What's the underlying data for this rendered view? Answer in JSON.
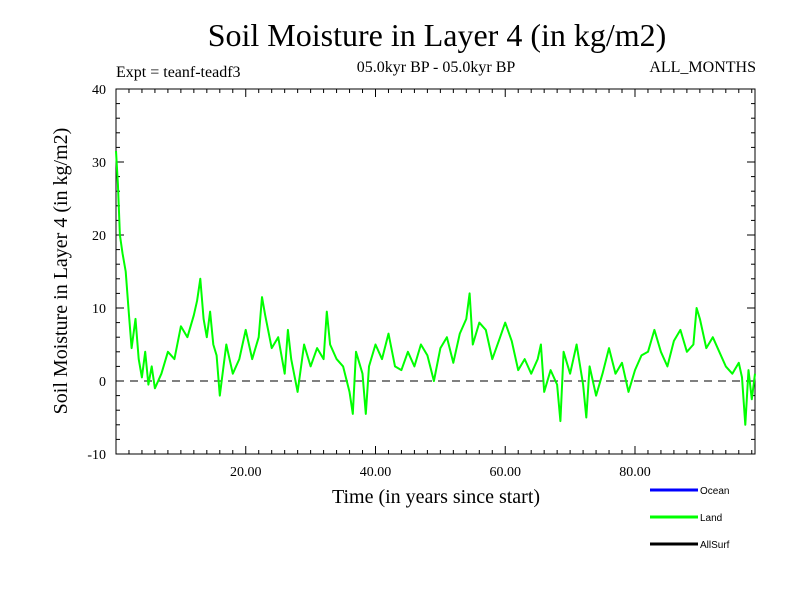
{
  "chart_data": {
    "type": "line",
    "title": "Soil Moisture in Layer 4 (in kg/m2)",
    "subtitle_left": "Expt = teanf-teadf3",
    "subtitle_center": "05.0kyr BP - 05.0kyr BP",
    "subtitle_right": "ALL_MONTHS",
    "xlabel": "Time (in years since start)",
    "ylabel": "Soil Moisture in Layer 4 (in kg/m2)",
    "xlim": [
      0,
      98.5
    ],
    "ylim": [
      -10,
      40
    ],
    "x_ticks": [
      20,
      40,
      60,
      80
    ],
    "x_tick_labels": [
      "20.00",
      "40.00",
      "60.00",
      "80.00"
    ],
    "y_ticks": [
      -10,
      0,
      10,
      20,
      30,
      40
    ],
    "y_tick_labels": [
      "-10",
      "0",
      "10",
      "20",
      "30",
      "40"
    ],
    "reference_line": 0,
    "grid": false,
    "legend": {
      "placement": "bottom-right",
      "entries": [
        {
          "name": "Ocean",
          "color": "#0000ff"
        },
        {
          "name": "Land",
          "color": "#00ff00"
        },
        {
          "name": "AllSurf",
          "color": "#000000"
        }
      ]
    },
    "series": [
      {
        "name": "Land",
        "color": "#00ff00",
        "x": [
          0.0,
          0.3,
          0.6,
          1.0,
          1.5,
          2.0,
          2.4,
          3.0,
          3.5,
          4.0,
          4.5,
          5.0,
          5.5,
          6.0,
          7.0,
          8.0,
          9.0,
          10.0,
          11.0,
          12.0,
          12.5,
          13.0,
          13.5,
          14.0,
          14.5,
          15.0,
          15.5,
          16.0,
          17.0,
          18.0,
          19.0,
          20.0,
          21.0,
          22.0,
          22.5,
          23.0,
          24.0,
          25.0,
          26.0,
          26.5,
          27.0,
          28.0,
          29.0,
          30.0,
          31.0,
          32.0,
          32.5,
          33.0,
          34.0,
          35.0,
          36.0,
          36.5,
          37.0,
          38.0,
          38.5,
          39.0,
          40.0,
          41.0,
          42.0,
          43.0,
          44.0,
          45.0,
          46.0,
          47.0,
          48.0,
          49.0,
          50.0,
          51.0,
          52.0,
          53.0,
          54.0,
          54.5,
          55.0,
          56.0,
          57.0,
          58.0,
          59.0,
          60.0,
          61.0,
          62.0,
          63.0,
          64.0,
          65.0,
          65.5,
          66.0,
          67.0,
          68.0,
          68.5,
          69.0,
          70.0,
          71.0,
          72.0,
          72.5,
          73.0,
          74.0,
          75.0,
          76.0,
          77.0,
          78.0,
          79.0,
          80.0,
          81.0,
          82.0,
          83.0,
          84.0,
          85.0,
          86.0,
          87.0,
          88.0,
          89.0,
          89.5,
          90.0,
          91.0,
          92.0,
          93.0,
          94.0,
          95.0,
          96.0,
          96.5,
          97.0,
          97.5,
          98.0,
          98.5
        ],
        "values": [
          31.5,
          27.0,
          20.0,
          17.5,
          15.0,
          9.0,
          4.5,
          8.5,
          3.0,
          0.5,
          4.0,
          -0.5,
          2.0,
          -1.0,
          1.0,
          4.0,
          3.0,
          7.5,
          6.0,
          9.0,
          11.0,
          14.0,
          8.5,
          6.0,
          9.5,
          5.0,
          3.5,
          -2.0,
          5.0,
          1.0,
          3.0,
          7.0,
          3.0,
          6.0,
          11.5,
          9.0,
          4.5,
          6.0,
          1.0,
          7.0,
          3.0,
          -1.5,
          5.0,
          2.0,
          4.5,
          3.0,
          9.5,
          5.0,
          3.0,
          2.0,
          -1.5,
          -4.5,
          4.0,
          1.0,
          -4.5,
          2.0,
          5.0,
          3.0,
          6.5,
          2.0,
          1.5,
          4.0,
          2.0,
          5.0,
          3.5,
          0.0,
          4.5,
          6.0,
          2.5,
          6.5,
          8.5,
          12.0,
          5.0,
          8.0,
          7.0,
          3.0,
          5.5,
          8.0,
          5.5,
          1.5,
          3.0,
          1.0,
          3.0,
          5.0,
          -1.5,
          1.5,
          -0.5,
          -5.5,
          4.0,
          1.0,
          5.0,
          -0.5,
          -5.0,
          2.0,
          -2.0,
          1.0,
          4.5,
          1.0,
          2.5,
          -1.5,
          1.5,
          3.5,
          4.0,
          7.0,
          4.0,
          2.0,
          5.5,
          7.0,
          4.0,
          5.0,
          10.0,
          8.5,
          4.5,
          6.0,
          4.0,
          2.0,
          1.0,
          2.5,
          0.5,
          -6.0,
          1.5,
          -2.5,
          1.0
        ]
      }
    ]
  }
}
